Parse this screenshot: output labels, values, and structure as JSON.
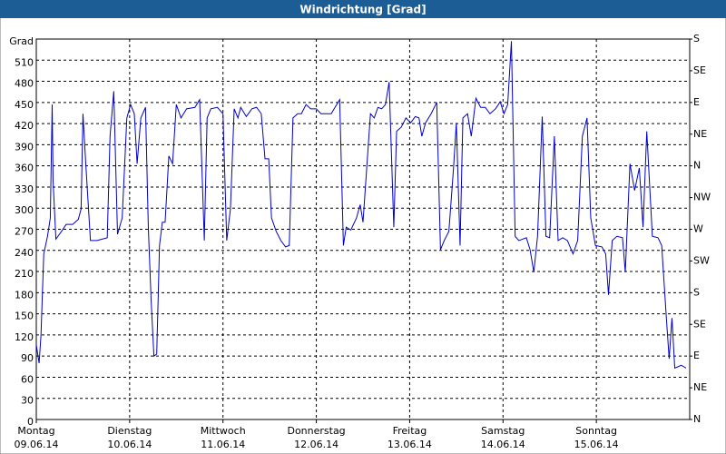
{
  "chart_data": {
    "type": "line",
    "title": "Windrichtung [Grad]",
    "xlim": [
      0,
      7
    ],
    "xticks": [
      {
        "value": 0,
        "label": "Montag",
        "date": "09.06.14"
      },
      {
        "value": 1,
        "label": "Dienstag",
        "date": "10.06.14"
      },
      {
        "value": 2,
        "label": "Mittwoch",
        "date": "11.06.14"
      },
      {
        "value": 3,
        "label": "Donnerstag",
        "date": "12.06.14"
      },
      {
        "value": 4,
        "label": "Freitag",
        "date": "13.06.14"
      },
      {
        "value": 5,
        "label": "Samstag",
        "date": "14.06.14"
      },
      {
        "value": 6,
        "label": "Sonntag",
        "date": "15.06.14"
      }
    ],
    "ylim": [
      0,
      540
    ],
    "yticks": [
      0,
      30,
      60,
      90,
      120,
      150,
      180,
      210,
      240,
      270,
      300,
      330,
      360,
      390,
      420,
      450,
      480,
      510,
      {
        "value": 540,
        "label": "Grad"
      }
    ],
    "y2lim": [
      0,
      540
    ],
    "y2ticks": [
      {
        "value": 0,
        "label": "N"
      },
      {
        "value": 45,
        "label": "NE"
      },
      {
        "value": 90,
        "label": "E"
      },
      {
        "value": 135,
        "label": "SE"
      },
      {
        "value": 180,
        "label": "S"
      },
      {
        "value": 225,
        "label": "SW"
      },
      {
        "value": 270,
        "label": "W"
      },
      {
        "value": 315,
        "label": "NW"
      },
      {
        "value": 360,
        "label": "N"
      },
      {
        "value": 405,
        "label": "NE"
      },
      {
        "value": 450,
        "label": "E"
      },
      {
        "value": 495,
        "label": "SE"
      },
      {
        "value": 540,
        "label": "S"
      }
    ],
    "grid": true,
    "color": "#0000cc",
    "x": [
      0,
      0.03,
      0.05,
      0.08,
      0.12,
      0.15,
      0.17,
      0.18,
      0.21,
      0.27,
      0.32,
      0.39,
      0.45,
      0.48,
      0.5,
      0.53,
      0.58,
      0.65,
      0.76,
      0.79,
      0.83,
      0.87,
      0.92,
      0.97,
      1.01,
      1.05,
      1.08,
      1.12,
      1.17,
      1.2,
      1.23,
      1.26,
      1.29,
      1.32,
      1.35,
      1.38,
      1.42,
      1.46,
      1.5,
      1.55,
      1.61,
      1.7,
      1.75,
      1.8,
      1.83,
      1.87,
      1.94,
      2.0,
      2.04,
      2.08,
      2.12,
      2.16,
      2.19,
      2.25,
      2.31,
      2.36,
      2.41,
      2.45,
      2.49,
      2.52,
      2.57,
      2.62,
      2.67,
      2.71,
      2.75,
      2.8,
      2.84,
      2.89,
      2.94,
      3.0,
      3.05,
      3.11,
      3.16,
      3.2,
      3.25,
      3.29,
      3.32,
      3.37,
      3.43,
      3.47,
      3.5,
      3.54,
      3.58,
      3.62,
      3.66,
      3.7,
      3.74,
      3.78,
      3.83,
      3.86,
      3.91,
      3.96,
      4.01,
      4.06,
      4.1,
      4.13,
      4.17,
      4.23,
      4.29,
      4.33,
      4.37,
      4.42,
      4.47,
      4.5,
      4.54,
      4.57,
      4.62,
      4.66,
      4.71,
      4.76,
      4.81,
      4.86,
      4.92,
      4.97,
      5.01,
      5.05,
      5.09,
      5.13,
      5.17,
      5.25,
      5.29,
      5.33,
      5.37,
      5.42,
      5.46,
      5.5,
      5.55,
      5.59,
      5.64,
      5.69,
      5.75,
      5.8,
      5.85,
      5.9,
      5.94,
      5.99,
      6.06,
      6.1,
      6.13,
      6.17,
      6.22,
      6.28,
      6.31,
      6.36,
      6.41,
      6.46,
      6.5,
      6.54,
      6.6,
      6.66,
      6.7,
      6.75,
      6.78,
      6.81,
      6.84,
      6.91,
      6.96
    ],
    "values": [
      106,
      80,
      119,
      235,
      260,
      286,
      447,
      338,
      256,
      267,
      277,
      277,
      284,
      299,
      434,
      363,
      254,
      254,
      258,
      402,
      466,
      263,
      286,
      428,
      447,
      434,
      363,
      428,
      443,
      273,
      170,
      90,
      93,
      247,
      280,
      280,
      374,
      363,
      447,
      428,
      441,
      443,
      454,
      254,
      428,
      441,
      443,
      434,
      254,
      299,
      441,
      428,
      443,
      430,
      441,
      443,
      434,
      370,
      370,
      286,
      267,
      254,
      245,
      247,
      428,
      434,
      434,
      447,
      441,
      441,
      434,
      434,
      434,
      443,
      454,
      247,
      273,
      269,
      286,
      305,
      280,
      357,
      434,
      428,
      443,
      441,
      447,
      479,
      273,
      409,
      415,
      428,
      421,
      430,
      428,
      402,
      421,
      434,
      450,
      241,
      254,
      267,
      357,
      421,
      247,
      428,
      434,
      402,
      456,
      443,
      443,
      434,
      441,
      451,
      434,
      447,
      537,
      260,
      254,
      258,
      241,
      209,
      260,
      430,
      260,
      258,
      402,
      254,
      258,
      254,
      235,
      254,
      402,
      428,
      286,
      247,
      245,
      235,
      177,
      254,
      260,
      258,
      209,
      363,
      325,
      357,
      273,
      409,
      260,
      258,
      247,
      144,
      86,
      144,
      73,
      77,
      73
    ]
  }
}
